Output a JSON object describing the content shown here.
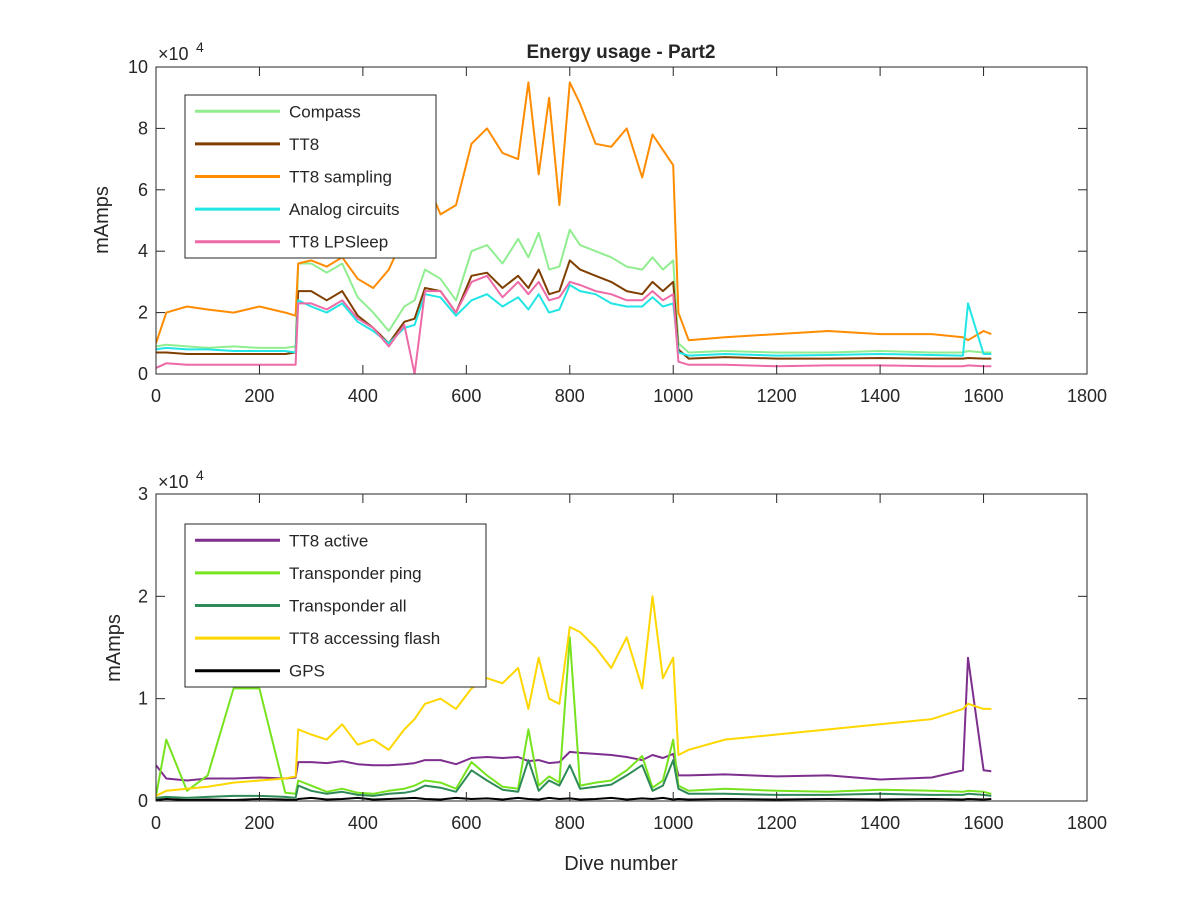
{
  "figure_title": "Energy usage - Part2",
  "chart_data": [
    {
      "type": "line",
      "title": "Energy usage - Part2",
      "xlabel": "",
      "ylabel": "mAmps",
      "exponent_label": "×10",
      "exponent_power": "4",
      "xlim": [
        0,
        1800
      ],
      "ylim": [
        0,
        100000
      ],
      "xticks": [
        "0",
        "200",
        "400",
        "600",
        "800",
        "1000",
        "1200",
        "1400",
        "1600",
        "1800"
      ],
      "yticks": [
        "0",
        "2",
        "4",
        "6",
        "8",
        "10"
      ],
      "grid": false,
      "legend_position": "top-left",
      "x": [
        0,
        20,
        60,
        100,
        150,
        200,
        250,
        270,
        275,
        300,
        330,
        360,
        390,
        420,
        450,
        480,
        500,
        520,
        550,
        580,
        610,
        640,
        670,
        700,
        720,
        740,
        760,
        780,
        800,
        820,
        850,
        880,
        910,
        940,
        960,
        980,
        1000,
        1010,
        1030,
        1100,
        1200,
        1300,
        1400,
        1500,
        1560,
        1570,
        1600,
        1615
      ],
      "series": [
        {
          "name": "Compass",
          "color": "#90ee90",
          "values": [
            9000,
            9500,
            9000,
            8500,
            9000,
            8500,
            8500,
            9000,
            36000,
            36000,
            33000,
            36000,
            25000,
            20000,
            14000,
            22000,
            24000,
            34000,
            31000,
            24000,
            40000,
            42000,
            36000,
            44000,
            38000,
            46000,
            34000,
            35000,
            47000,
            42000,
            40000,
            38000,
            35000,
            34000,
            38000,
            34000,
            37000,
            10000,
            7000,
            7500,
            7000,
            7000,
            7500,
            7000,
            7000,
            7500,
            7000,
            7000
          ]
        },
        {
          "name": "TT8",
          "color": "#7f3f00",
          "values": [
            7000,
            7000,
            6500,
            6500,
            6500,
            6500,
            6500,
            7000,
            27000,
            27000,
            24000,
            27000,
            19000,
            15000,
            10000,
            17000,
            18000,
            28000,
            27000,
            20000,
            32000,
            33000,
            28000,
            32000,
            28000,
            34000,
            26000,
            27000,
            37000,
            34000,
            32000,
            30000,
            27000,
            26000,
            30000,
            27000,
            30000,
            8000,
            5000,
            5500,
            5000,
            5000,
            5200,
            5000,
            5000,
            5200,
            5000,
            5000
          ]
        },
        {
          "name": "TT8 sampling",
          "color": "#ff8c00",
          "values": [
            10000,
            20000,
            22000,
            21000,
            20000,
            22000,
            20000,
            19000,
            36000,
            37000,
            35000,
            38000,
            31000,
            28000,
            34000,
            45000,
            48000,
            64000,
            52000,
            55000,
            75000,
            80000,
            72000,
            70000,
            95000,
            65000,
            90000,
            55000,
            95000,
            88000,
            75000,
            74000,
            80000,
            64000,
            78000,
            73000,
            68000,
            20000,
            11000,
            12000,
            13000,
            14000,
            13000,
            13000,
            12000,
            11000,
            14000,
            13000
          ]
        },
        {
          "name": "Analog circuits",
          "color": "#22e5e5",
          "values": [
            8000,
            8500,
            8000,
            8000,
            7500,
            7500,
            7500,
            7000,
            24000,
            22000,
            20000,
            23000,
            17000,
            14000,
            10000,
            15000,
            16000,
            26000,
            25000,
            19000,
            24000,
            26000,
            22000,
            25000,
            21000,
            26000,
            20000,
            21000,
            29000,
            27000,
            26000,
            23000,
            22000,
            22000,
            25000,
            22000,
            23000,
            7000,
            6000,
            6500,
            6000,
            6200,
            6500,
            6200,
            6000,
            23000,
            6500,
            6500
          ]
        },
        {
          "name": "TT8 LPSleep",
          "color": "#ee6aa7",
          "values": [
            2000,
            3500,
            3000,
            3000,
            3000,
            3000,
            3000,
            3000,
            23000,
            23000,
            21000,
            24000,
            18000,
            15000,
            9000,
            16000,
            0,
            27000,
            27000,
            20000,
            30000,
            32000,
            25000,
            30000,
            26000,
            30000,
            24000,
            25000,
            30000,
            29000,
            27000,
            26000,
            24000,
            24000,
            27000,
            24000,
            26000,
            4000,
            3000,
            3000,
            2500,
            2800,
            2800,
            2500,
            2500,
            2800,
            2500,
            2500
          ]
        }
      ]
    },
    {
      "type": "line",
      "title": "",
      "xlabel": "Dive number",
      "ylabel": "mAmps",
      "exponent_label": "×10",
      "exponent_power": "4",
      "xlim": [
        0,
        1800
      ],
      "ylim": [
        0,
        30000
      ],
      "xticks": [
        "0",
        "200",
        "400",
        "600",
        "800",
        "1000",
        "1200",
        "1400",
        "1600",
        "1800"
      ],
      "yticks": [
        "0",
        "1",
        "2",
        "3"
      ],
      "grid": false,
      "legend_position": "top-left",
      "x": [
        0,
        20,
        60,
        100,
        150,
        200,
        250,
        270,
        275,
        300,
        330,
        360,
        390,
        420,
        450,
        480,
        500,
        520,
        550,
        580,
        610,
        640,
        670,
        700,
        720,
        740,
        760,
        780,
        800,
        820,
        850,
        880,
        910,
        940,
        960,
        980,
        1000,
        1010,
        1030,
        1100,
        1200,
        1300,
        1400,
        1500,
        1560,
        1570,
        1600,
        1615
      ],
      "series": [
        {
          "name": "TT8 active",
          "color": "#7e2f8e",
          "values": [
            3500,
            2200,
            2000,
            2200,
            2200,
            2300,
            2200,
            2300,
            3800,
            3800,
            3700,
            3900,
            3600,
            3500,
            3500,
            3600,
            3700,
            4000,
            4000,
            3600,
            4200,
            4300,
            4200,
            4300,
            3900,
            4000,
            3700,
            3800,
            4800,
            4700,
            4600,
            4500,
            4300,
            4000,
            4500,
            4200,
            4600,
            2500,
            2500,
            2600,
            2400,
            2500,
            2100,
            2300,
            3000,
            14000,
            3000,
            2900
          ]
        },
        {
          "name": "Transponder ping",
          "color": "#77e31f",
          "values": [
            500,
            6000,
            1000,
            2500,
            11000,
            11000,
            800,
            700,
            2000,
            1500,
            900,
            1200,
            800,
            700,
            1000,
            1200,
            1500,
            2000,
            1800,
            1200,
            3800,
            2500,
            1400,
            1200,
            7000,
            1500,
            2400,
            1800,
            16000,
            1500,
            1800,
            2000,
            3000,
            4400,
            1300,
            2000,
            6000,
            1500,
            1000,
            1200,
            1000,
            900,
            1100,
            1000,
            900,
            1000,
            900,
            700
          ]
        },
        {
          "name": "Transponder all",
          "color": "#2e8b57",
          "values": [
            300,
            400,
            300,
            400,
            500,
            500,
            400,
            300,
            1500,
            1000,
            700,
            900,
            600,
            500,
            700,
            800,
            1000,
            1500,
            1300,
            900,
            3000,
            2000,
            1100,
            900,
            4000,
            1000,
            2000,
            1500,
            3500,
            1200,
            1400,
            1600,
            2500,
            3500,
            1000,
            1500,
            4000,
            1200,
            700,
            700,
            600,
            600,
            700,
            600,
            600,
            700,
            600,
            500
          ]
        },
        {
          "name": "TT8 accessing flash",
          "color": "#ffd700",
          "values": [
            500,
            1000,
            1200,
            1400,
            1800,
            2000,
            2200,
            2400,
            7000,
            6500,
            6000,
            7500,
            5500,
            6000,
            5000,
            7000,
            8000,
            9500,
            10000,
            9000,
            11000,
            12000,
            11500,
            13000,
            9000,
            14000,
            10000,
            9500,
            17000,
            16500,
            15000,
            13000,
            16000,
            11000,
            20000,
            12000,
            14000,
            4500,
            5000,
            6000,
            6500,
            7000,
            7500,
            8000,
            9000,
            9500,
            9000,
            9000
          ]
        },
        {
          "name": "GPS",
          "color": "#000000",
          "values": [
            100,
            200,
            100,
            150,
            100,
            200,
            150,
            100,
            200,
            300,
            150,
            200,
            300,
            150,
            200,
            250,
            300,
            200,
            150,
            300,
            200,
            250,
            150,
            300,
            200,
            150,
            300,
            200,
            250,
            150,
            200,
            300,
            150,
            250,
            200,
            300,
            150,
            200,
            150,
            200,
            150,
            200,
            150,
            200,
            150,
            200,
            150,
            200
          ]
        }
      ]
    }
  ]
}
